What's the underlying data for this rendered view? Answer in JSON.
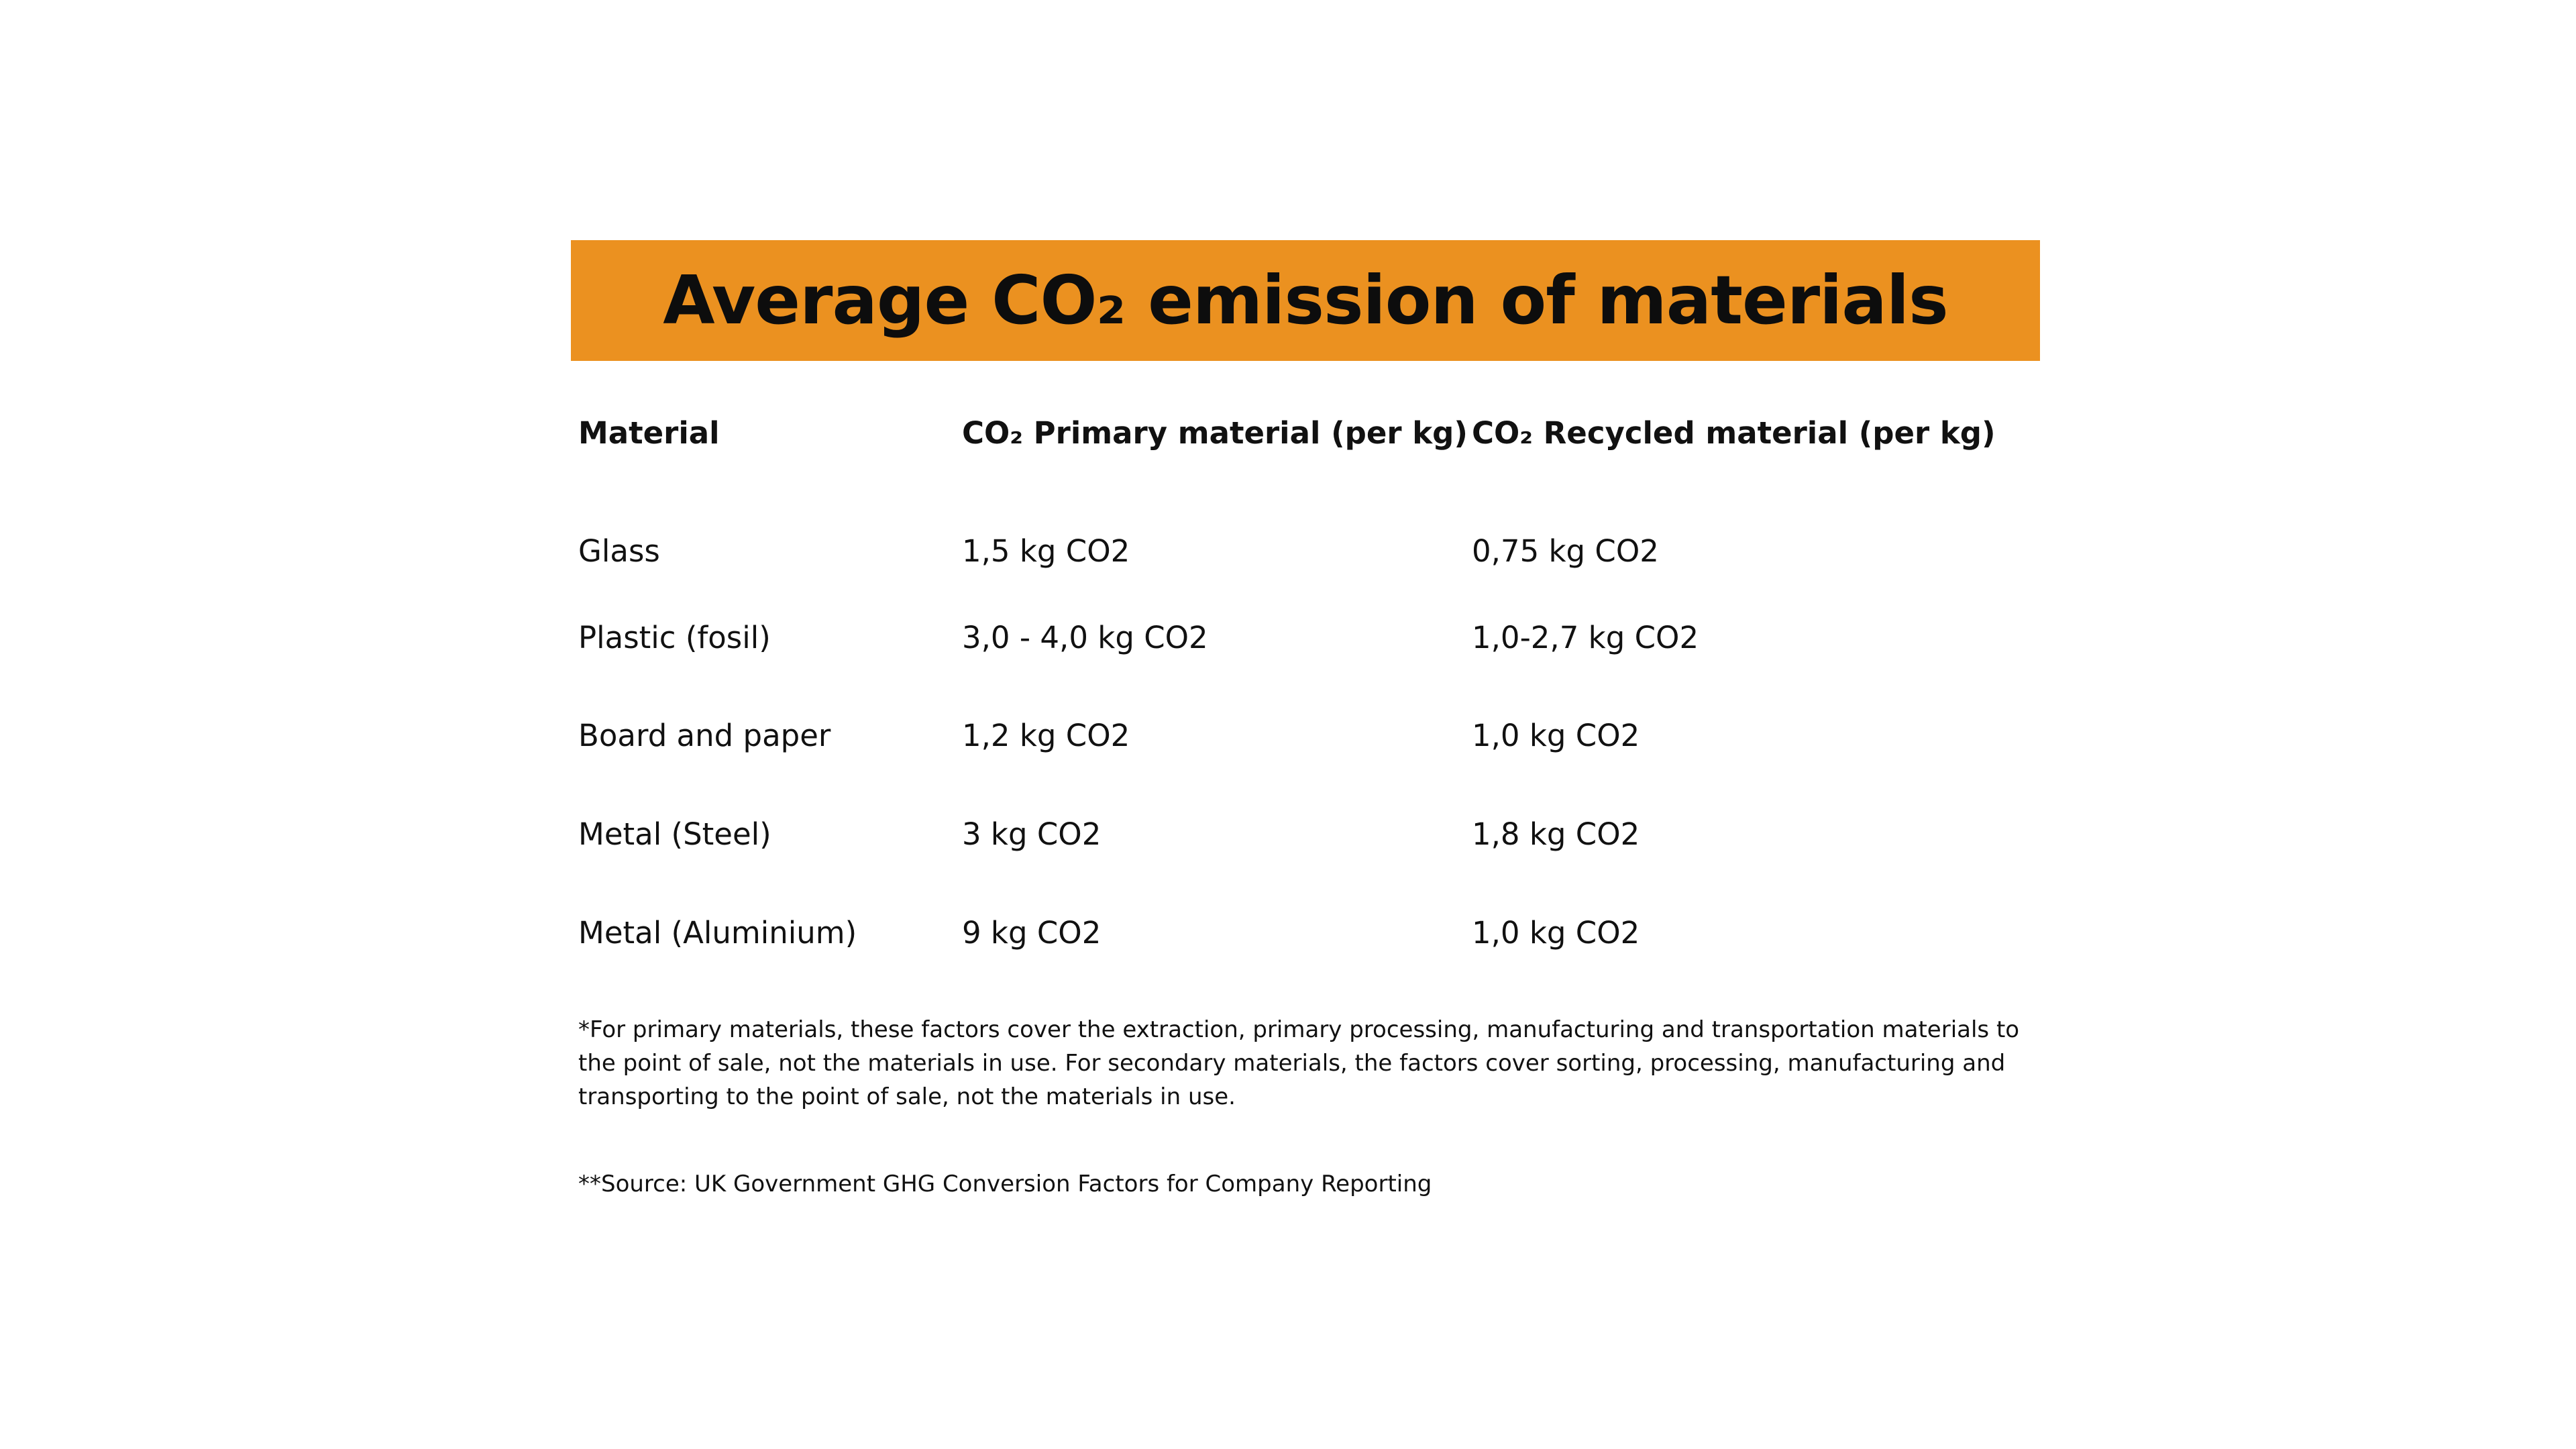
{
  "title": "Average CO₂ emission of materials",
  "colors": {
    "title_bar": "#eb9120",
    "text": "#111111",
    "background": "#ffffff"
  },
  "table": {
    "headers": [
      "Material",
      "CO₂ Primary material (per kg)",
      "CO₂ Recycled material (per kg)"
    ],
    "rows": [
      [
        "Glass",
        "1,5 kg CO2",
        "0,75 kg CO2"
      ],
      [
        "Plastic (fosil)",
        "3,0 - 4,0 kg CO2",
        "1,0-2,7 kg CO2"
      ],
      [
        "Board and paper",
        "1,2 kg CO2",
        "1,0 kg CO2"
      ],
      [
        "Metal (Steel)",
        "3 kg CO2",
        "1,8 kg CO2"
      ],
      [
        "Metal (Aluminium)",
        "9 kg CO2",
        "1,0 kg CO2"
      ]
    ]
  },
  "footnote": "*For primary materials, these factors cover the extraction, primary processing, manufacturing and transportation materials to the point of sale, not the materials in use. For secondary materials, the factors cover sorting, processing, manufacturing and transporting to the point of sale, not the materials in use.",
  "source": "**Source: UK Government GHG Conversion Factors for Company Reporting"
}
